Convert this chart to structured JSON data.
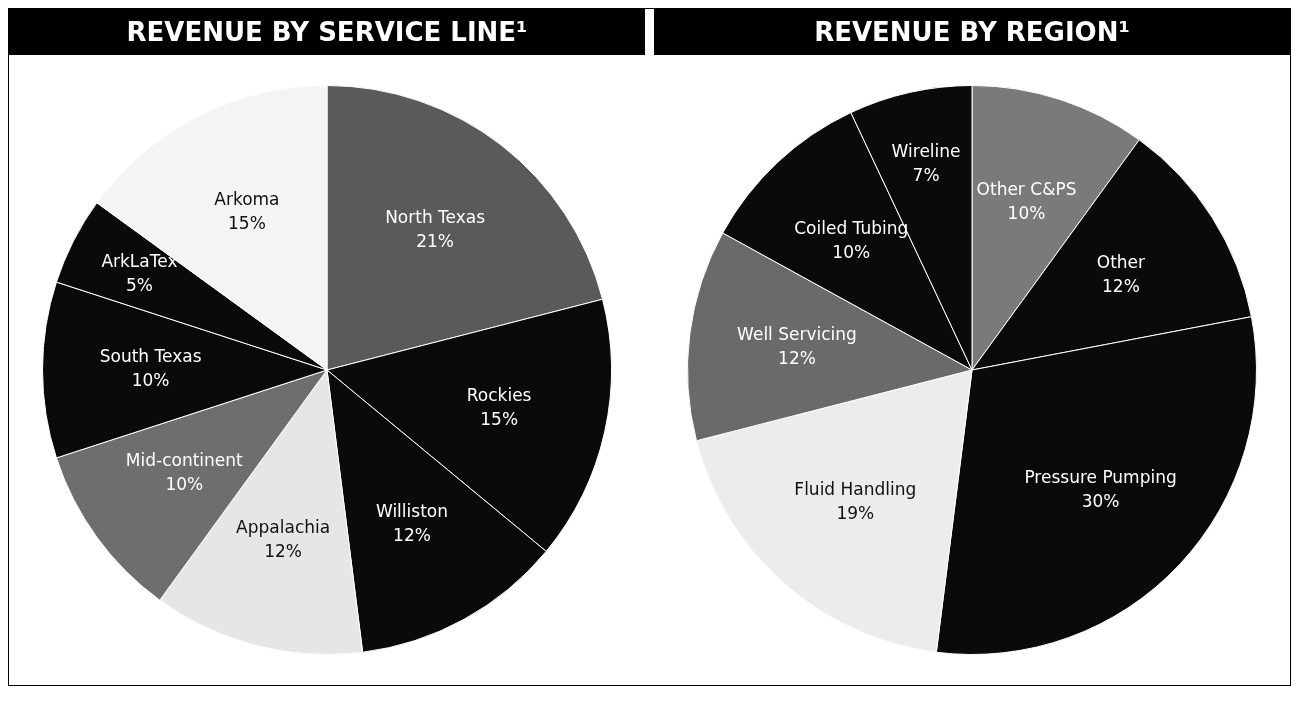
{
  "chart_data": [
    {
      "type": "pie",
      "title": "REVENUE BY SERVICE LINE¹",
      "categories": [
        "North Texas",
        "Rockies",
        "Williston",
        "Appalachia",
        "Mid-continent",
        "South Texas",
        "ArkLaTex",
        "Arkoma"
      ],
      "values": [
        21,
        15,
        12,
        12,
        10,
        10,
        5,
        15
      ],
      "value_labels": [
        "21%",
        "15%",
        "12%",
        "12%",
        "10%",
        "10%",
        "5%",
        "15%"
      ],
      "colors": [
        "#5a5a5a",
        "#0a0a0a",
        "#0a0a0a",
        "#e6e6e6",
        "#6e6e6e",
        "#0a0a0a",
        "#0a0a0a",
        "#f4f4f4"
      ],
      "legend": false
    },
    {
      "type": "pie",
      "title": "REVENUE BY REGION¹",
      "categories": [
        "Other C&PS",
        "Other",
        "Pressure Pumping",
        "Fluid Handling",
        "Well Servicing",
        "Coiled Tubing",
        "Wireline"
      ],
      "values": [
        10,
        12,
        30,
        19,
        12,
        10,
        7
      ],
      "value_labels": [
        "10%",
        "12%",
        "30%",
        "19%",
        "12%",
        "10%",
        "7%"
      ],
      "colors": [
        "#7a7a7a",
        "#0a0a0a",
        "#0a0a0a",
        "#ececec",
        "#6a6a6a",
        "#0a0a0a",
        "#0a0a0a"
      ],
      "legend": false
    }
  ]
}
